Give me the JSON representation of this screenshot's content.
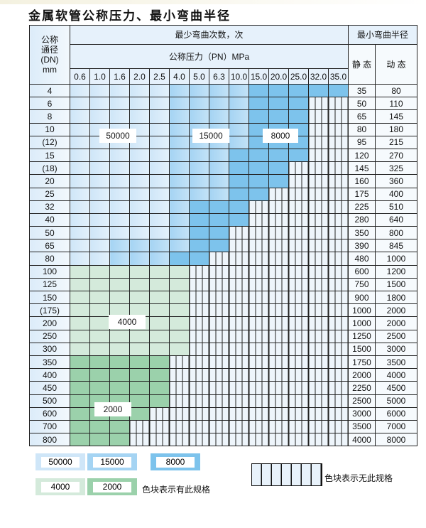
{
  "title": "金属软管公称压力、最小弯曲半径",
  "header": {
    "dn_label_lines": [
      "公称",
      "通径",
      "(DN)",
      "mm"
    ],
    "cycles_label": "最少弯曲次数，次",
    "pressure_label": "公称压力（PN）MPa",
    "radius_label": "最小弯曲半径",
    "static_label": "静 态",
    "dynamic_label": "动 态",
    "pressures": [
      "0.6",
      "1.0",
      "1.6",
      "2.0",
      "2.5",
      "4.0",
      "5.0",
      "6.3",
      "10.0",
      "15.0",
      "20.0",
      "25.0",
      "32.0",
      "35.0"
    ]
  },
  "colors": {
    "50000": "#cfe6f8",
    "15000": "#a5d4f3",
    "8000": "#7dc3ec",
    "4000": "#d4eadb",
    "2000": "#9bd1ab",
    "none": "#eef5fb"
  },
  "rows": [
    {
      "dn": "4",
      "cycles": [
        50000,
        50000,
        50000,
        50000,
        50000,
        15000,
        15000,
        15000,
        15000,
        8000,
        8000,
        8000,
        8000,
        8000
      ],
      "static": "35",
      "dynamic": "80"
    },
    {
      "dn": "6",
      "cycles": [
        50000,
        50000,
        50000,
        50000,
        50000,
        15000,
        15000,
        15000,
        15000,
        8000,
        8000,
        8000,
        null,
        null
      ],
      "static": "50",
      "dynamic": "110"
    },
    {
      "dn": "8",
      "cycles": [
        50000,
        50000,
        50000,
        50000,
        50000,
        15000,
        15000,
        15000,
        15000,
        8000,
        8000,
        8000,
        null,
        null
      ],
      "static": "65",
      "dynamic": "145"
    },
    {
      "dn": "10",
      "cycles": [
        50000,
        50000,
        50000,
        50000,
        50000,
        15000,
        15000,
        15000,
        15000,
        8000,
        8000,
        8000,
        null,
        null
      ],
      "static": "80",
      "dynamic": "180"
    },
    {
      "dn": "(12)",
      "cycles": [
        50000,
        50000,
        50000,
        50000,
        50000,
        15000,
        15000,
        15000,
        15000,
        8000,
        8000,
        8000,
        null,
        null
      ],
      "static": "95",
      "dynamic": "215"
    },
    {
      "dn": "15",
      "cycles": [
        50000,
        50000,
        50000,
        50000,
        50000,
        15000,
        15000,
        15000,
        8000,
        8000,
        8000,
        8000,
        null,
        null
      ],
      "static": "120",
      "dynamic": "270"
    },
    {
      "dn": "(18)",
      "cycles": [
        50000,
        50000,
        50000,
        50000,
        50000,
        15000,
        15000,
        15000,
        8000,
        8000,
        8000,
        null,
        null,
        null
      ],
      "static": "145",
      "dynamic": "325"
    },
    {
      "dn": "20",
      "cycles": [
        50000,
        50000,
        50000,
        50000,
        50000,
        15000,
        15000,
        15000,
        8000,
        8000,
        8000,
        null,
        null,
        null
      ],
      "static": "160",
      "dynamic": "360"
    },
    {
      "dn": "25",
      "cycles": [
        50000,
        50000,
        50000,
        50000,
        50000,
        15000,
        15000,
        15000,
        8000,
        8000,
        null,
        null,
        null,
        null
      ],
      "static": "175",
      "dynamic": "400"
    },
    {
      "dn": "32",
      "cycles": [
        50000,
        50000,
        50000,
        50000,
        50000,
        15000,
        8000,
        8000,
        8000,
        null,
        null,
        null,
        null,
        null
      ],
      "static": "225",
      "dynamic": "510"
    },
    {
      "dn": "40",
      "cycles": [
        50000,
        50000,
        50000,
        50000,
        50000,
        15000,
        8000,
        8000,
        8000,
        null,
        null,
        null,
        null,
        null
      ],
      "static": "280",
      "dynamic": "640"
    },
    {
      "dn": "50",
      "cycles": [
        50000,
        50000,
        50000,
        50000,
        50000,
        15000,
        8000,
        8000,
        null,
        null,
        null,
        null,
        null,
        null
      ],
      "static": "350",
      "dynamic": "800"
    },
    {
      "dn": "65",
      "cycles": [
        50000,
        50000,
        15000,
        15000,
        15000,
        15000,
        8000,
        8000,
        null,
        null,
        null,
        null,
        null,
        null
      ],
      "static": "390",
      "dynamic": "845"
    },
    {
      "dn": "80",
      "cycles": [
        50000,
        50000,
        15000,
        15000,
        15000,
        8000,
        8000,
        null,
        null,
        null,
        null,
        null,
        null,
        null
      ],
      "static": "480",
      "dynamic": "1000"
    },
    {
      "dn": "100",
      "cycles": [
        4000,
        4000,
        4000,
        4000,
        4000,
        4000,
        null,
        null,
        null,
        null,
        null,
        null,
        null,
        null
      ],
      "static": "600",
      "dynamic": "1200"
    },
    {
      "dn": "125",
      "cycles": [
        4000,
        4000,
        4000,
        4000,
        4000,
        4000,
        null,
        null,
        null,
        null,
        null,
        null,
        null,
        null
      ],
      "static": "750",
      "dynamic": "1500"
    },
    {
      "dn": "150",
      "cycles": [
        4000,
        4000,
        4000,
        4000,
        4000,
        4000,
        null,
        null,
        null,
        null,
        null,
        null,
        null,
        null
      ],
      "static": "900",
      "dynamic": "1800"
    },
    {
      "dn": "(175)",
      "cycles": [
        4000,
        4000,
        4000,
        4000,
        4000,
        4000,
        null,
        null,
        null,
        null,
        null,
        null,
        null,
        null
      ],
      "static": "1000",
      "dynamic": "2000"
    },
    {
      "dn": "200",
      "cycles": [
        4000,
        4000,
        4000,
        4000,
        4000,
        4000,
        null,
        null,
        null,
        null,
        null,
        null,
        null,
        null
      ],
      "static": "1000",
      "dynamic": "2000"
    },
    {
      "dn": "250",
      "cycles": [
        4000,
        4000,
        4000,
        4000,
        4000,
        4000,
        null,
        null,
        null,
        null,
        null,
        null,
        null,
        null
      ],
      "static": "1250",
      "dynamic": "2500"
    },
    {
      "dn": "300",
      "cycles": [
        4000,
        4000,
        4000,
        4000,
        4000,
        4000,
        null,
        null,
        null,
        null,
        null,
        null,
        null,
        null
      ],
      "static": "1500",
      "dynamic": "3000"
    },
    {
      "dn": "350",
      "cycles": [
        2000,
        2000,
        2000,
        2000,
        2000,
        null,
        null,
        null,
        null,
        null,
        null,
        null,
        null,
        null
      ],
      "static": "1750",
      "dynamic": "3500"
    },
    {
      "dn": "400",
      "cycles": [
        2000,
        2000,
        2000,
        2000,
        2000,
        null,
        null,
        null,
        null,
        null,
        null,
        null,
        null,
        null
      ],
      "static": "2000",
      "dynamic": "4000"
    },
    {
      "dn": "450",
      "cycles": [
        2000,
        2000,
        2000,
        2000,
        2000,
        null,
        null,
        null,
        null,
        null,
        null,
        null,
        null,
        null
      ],
      "static": "2250",
      "dynamic": "4500"
    },
    {
      "dn": "500",
      "cycles": [
        2000,
        2000,
        2000,
        2000,
        2000,
        null,
        null,
        null,
        null,
        null,
        null,
        null,
        null,
        null
      ],
      "static": "2500",
      "dynamic": "5000"
    },
    {
      "dn": "600",
      "cycles": [
        2000,
        2000,
        2000,
        2000,
        null,
        null,
        null,
        null,
        null,
        null,
        null,
        null,
        null,
        null
      ],
      "static": "3000",
      "dynamic": "6000"
    },
    {
      "dn": "700",
      "cycles": [
        2000,
        2000,
        2000,
        null,
        null,
        null,
        null,
        null,
        null,
        null,
        null,
        null,
        null,
        null
      ],
      "static": "3500",
      "dynamic": "7000"
    },
    {
      "dn": "800",
      "cycles": [
        2000,
        2000,
        2000,
        null,
        null,
        null,
        null,
        null,
        null,
        null,
        null,
        null,
        null,
        null
      ],
      "static": "4000",
      "dynamic": "8000"
    }
  ],
  "region_labels": [
    "50000",
    "15000",
    "8000",
    "4000",
    "2000"
  ],
  "legend": {
    "items": [
      "50000",
      "15000",
      "8000",
      "4000",
      "2000"
    ],
    "available_text": "色块表示有此规格",
    "unavailable_text": "色块表示无此规格"
  }
}
